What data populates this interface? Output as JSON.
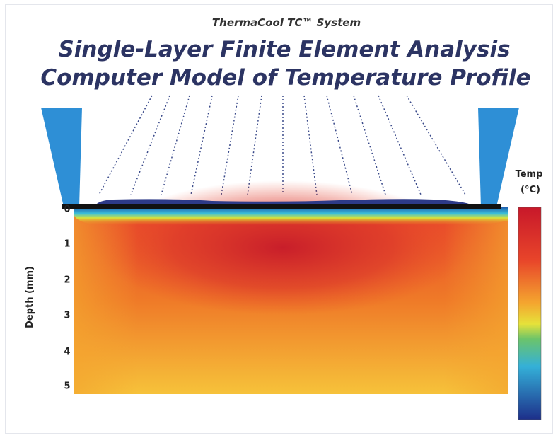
{
  "header": {
    "subtitle": "ThermaCool TC™ System",
    "title_lines": [
      "Single-Layer Finite Element Analysis",
      "Computer Model of Temperature Profile"
    ]
  },
  "depth_axis": {
    "label": "Depth (mm)",
    "ticks": [
      "0",
      "1",
      "2",
      "3",
      "4",
      "5"
    ]
  },
  "colorbar": {
    "label_lines": [
      "Temp",
      "(°C)"
    ]
  }
}
